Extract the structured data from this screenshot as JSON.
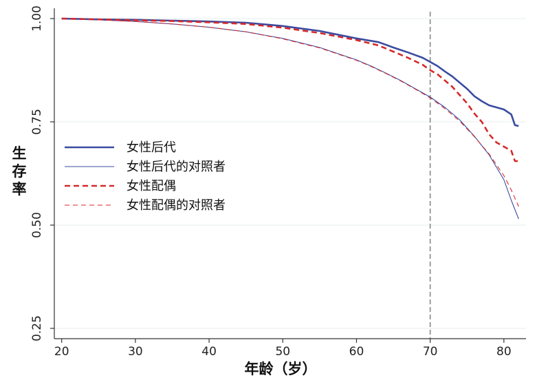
{
  "chart_data": {
    "type": "line",
    "xlabel": "年龄（岁）",
    "ylabel": "生存率",
    "xlim": [
      19,
      83
    ],
    "ylim": [
      0.225,
      1.025
    ],
    "xticks": [
      20,
      30,
      40,
      50,
      60,
      70,
      80
    ],
    "yticks": [
      0.25,
      0.5,
      0.75,
      1.0
    ],
    "ytick_labels": [
      "0.25",
      "0.50",
      "0.75",
      "1.00"
    ],
    "reference_line_x": 70,
    "grid": true,
    "legend_position": "left-middle",
    "series": [
      {
        "name": "女性后代",
        "color": "#3a4ba0",
        "style": "solid-thick",
        "x": [
          20,
          25,
          30,
          35,
          40,
          45,
          50,
          55,
          60,
          63,
          65,
          67,
          69,
          70,
          71,
          72,
          73,
          74,
          75,
          76,
          77,
          78,
          79,
          80,
          81,
          81.5,
          82
        ],
        "y": [
          1.0,
          0.998,
          0.997,
          0.995,
          0.993,
          0.99,
          0.982,
          0.97,
          0.952,
          0.943,
          0.93,
          0.918,
          0.905,
          0.895,
          0.885,
          0.872,
          0.86,
          0.845,
          0.83,
          0.812,
          0.8,
          0.79,
          0.785,
          0.78,
          0.768,
          0.742,
          0.74
        ]
      },
      {
        "name": "女性后代的对照者",
        "color": "#3a4ba0",
        "style": "solid-thin",
        "x": [
          20,
          25,
          30,
          35,
          40,
          45,
          50,
          55,
          60,
          62,
          64,
          66,
          68,
          70,
          72,
          74,
          76,
          78,
          80,
          81,
          82
        ],
        "y": [
          1.0,
          0.997,
          0.993,
          0.987,
          0.979,
          0.968,
          0.952,
          0.93,
          0.9,
          0.885,
          0.868,
          0.85,
          0.83,
          0.81,
          0.785,
          0.755,
          0.715,
          0.67,
          0.61,
          0.56,
          0.515
        ]
      },
      {
        "name": "女性配偶",
        "color": "#d42a2a",
        "style": "dashed-thick",
        "x": [
          20,
          25,
          30,
          35,
          40,
          45,
          50,
          55,
          60,
          63,
          65,
          67,
          69,
          70,
          71,
          72,
          73,
          74,
          75,
          76,
          77,
          78,
          79,
          80,
          81,
          81.5,
          82
        ],
        "y": [
          1.0,
          0.998,
          0.996,
          0.994,
          0.991,
          0.987,
          0.978,
          0.965,
          0.948,
          0.935,
          0.92,
          0.905,
          0.888,
          0.875,
          0.865,
          0.85,
          0.835,
          0.815,
          0.795,
          0.77,
          0.75,
          0.72,
          0.7,
          0.69,
          0.68,
          0.655,
          0.655
        ]
      },
      {
        "name": "女性配偶的对照者",
        "color": "#d42a2a",
        "style": "dashed-thin",
        "x": [
          20,
          25,
          30,
          35,
          40,
          45,
          50,
          55,
          60,
          62,
          64,
          66,
          68,
          70,
          72,
          74,
          76,
          78,
          80,
          81,
          82
        ],
        "y": [
          1.0,
          0.997,
          0.993,
          0.987,
          0.979,
          0.968,
          0.951,
          0.929,
          0.899,
          0.884,
          0.867,
          0.849,
          0.829,
          0.808,
          0.782,
          0.752,
          0.714,
          0.672,
          0.62,
          0.585,
          0.545
        ]
      }
    ]
  }
}
